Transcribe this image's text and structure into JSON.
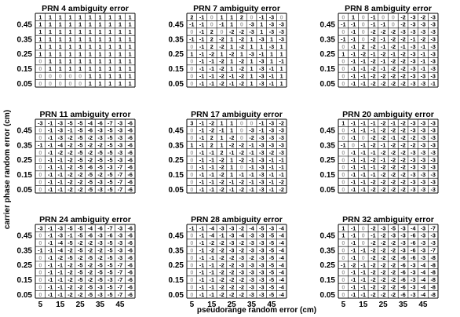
{
  "figure": {
    "ylabel": "carrier phase random error (cm)",
    "xlabel": "pseudorange random error (cm)",
    "y_ticks": [
      "0.45",
      "0.35",
      "0.25",
      "0.15",
      "0.05"
    ],
    "x_ticks": [
      "5",
      "15",
      "25",
      "35",
      "45"
    ],
    "zero_color": "#a0a0a0",
    "value_color": "#000000"
  },
  "chart_data": [
    {
      "type": "table",
      "title": "PRN 4 ambiguity error",
      "rows": [
        [
          1,
          1,
          1,
          1,
          1,
          1,
          1,
          1,
          1,
          1
        ],
        [
          1,
          1,
          1,
          1,
          1,
          1,
          1,
          1,
          1,
          1
        ],
        [
          1,
          1,
          1,
          1,
          1,
          1,
          1,
          1,
          1,
          1
        ],
        [
          1,
          1,
          1,
          1,
          1,
          1,
          1,
          1,
          1,
          1
        ],
        [
          1,
          1,
          1,
          1,
          1,
          1,
          1,
          1,
          1,
          1
        ],
        [
          1,
          1,
          1,
          1,
          1,
          1,
          1,
          1,
          1,
          1
        ],
        [
          0,
          1,
          1,
          1,
          1,
          1,
          1,
          1,
          1,
          1
        ],
        [
          0,
          1,
          1,
          1,
          1,
          1,
          1,
          1,
          1,
          1
        ],
        [
          0,
          0,
          0,
          0,
          0,
          1,
          1,
          1,
          1,
          1
        ],
        [
          0,
          0,
          0,
          0,
          0,
          1,
          1,
          1,
          1,
          1
        ]
      ]
    },
    {
      "type": "table",
      "title": "PRN 7 ambiguity error",
      "rows": [
        [
          2,
          -1,
          0,
          1,
          1,
          2,
          0,
          -1,
          -3,
          0
        ],
        [
          -1,
          -1,
          0,
          -1,
          1,
          0,
          -3,
          1,
          -3,
          -3
        ],
        [
          0,
          -1,
          2,
          0,
          -2,
          -2,
          -3,
          1,
          -3,
          -3
        ],
        [
          -1,
          -1,
          2,
          -2,
          1,
          -2,
          1,
          -3,
          1,
          -3
        ],
        [
          0,
          -1,
          2,
          -2,
          1,
          -2,
          1,
          1,
          -3,
          1
        ],
        [
          1,
          -1,
          -2,
          1,
          -2,
          1,
          -3,
          -1,
          1,
          1
        ],
        [
          0,
          -1,
          -1,
          -2,
          1,
          -2,
          1,
          -3,
          1,
          -1
        ],
        [
          0,
          -1,
          -1,
          -2,
          1,
          -2,
          1,
          -3,
          -1,
          1
        ],
        [
          0,
          -1,
          -1,
          -2,
          -1,
          -2,
          1,
          -3,
          -1,
          1
        ],
        [
          0,
          -1,
          -1,
          -2,
          -1,
          -2,
          1,
          -3,
          -1,
          1
        ]
      ]
    },
    {
      "type": "table",
      "title": "PRN 8 ambiguity error",
      "rows": [
        [
          0,
          1,
          0,
          -1,
          0,
          0,
          -2,
          -3,
          -2,
          -3
        ],
        [
          -1,
          -1,
          0,
          -1,
          -1,
          0,
          -2,
          -3,
          -3,
          -3
        ],
        [
          0,
          -1,
          0,
          -2,
          -2,
          -2,
          -3,
          -3,
          -3,
          -3
        ],
        [
          -1,
          -1,
          0,
          -2,
          -1,
          -2,
          -2,
          -1,
          -2,
          -3
        ],
        [
          0,
          -1,
          2,
          -2,
          -1,
          -2,
          -1,
          -3,
          -1,
          -3
        ],
        [
          1,
          -1,
          -2,
          -1,
          -2,
          -1,
          -2,
          -3,
          -1,
          -3
        ],
        [
          0,
          -1,
          -1,
          -2,
          -1,
          -2,
          -2,
          -3,
          -1,
          -3
        ],
        [
          0,
          -1,
          -1,
          -2,
          -1,
          -2,
          -2,
          -3,
          -1,
          -3
        ],
        [
          0,
          -1,
          -1,
          -2,
          -2,
          -2,
          -2,
          -3,
          -3,
          -3
        ],
        [
          0,
          -1,
          -1,
          -2,
          -2,
          -2,
          -2,
          -3,
          -3,
          -1
        ]
      ]
    },
    {
      "type": "table",
      "title": "PRN 11 ambiguity error",
      "rows": [
        [
          -3,
          -1,
          -3,
          -5,
          -5,
          -4,
          -6,
          -7,
          -3,
          -6
        ],
        [
          0,
          -1,
          -3,
          -1,
          -5,
          -6,
          -3,
          -5,
          -3,
          -6
        ],
        [
          0,
          -1,
          -3,
          -2,
          -5,
          -2,
          -3,
          -5,
          -3,
          -6
        ],
        [
          -1,
          -1,
          -4,
          -2,
          -5,
          -2,
          -2,
          -5,
          -3,
          -6
        ],
        [
          0,
          -1,
          -2,
          -2,
          -5,
          -2,
          -5,
          -5,
          -3,
          -6
        ],
        [
          0,
          -1,
          -1,
          -2,
          -5,
          -2,
          -5,
          -5,
          -3,
          -6
        ],
        [
          0,
          -1,
          -1,
          -2,
          -5,
          -6,
          -5,
          -3,
          -7,
          -6
        ],
        [
          0,
          -1,
          -1,
          -2,
          -2,
          -5,
          -2,
          -5,
          -7,
          -6
        ],
        [
          0,
          -1,
          -1,
          -2,
          -2,
          -5,
          -3,
          -5,
          -7,
          -6
        ],
        [
          0,
          -1,
          -1,
          -2,
          -2,
          -5,
          -3,
          -5,
          -7,
          -6
        ]
      ]
    },
    {
      "type": "table",
      "title": "PRN 17 ambiguity error",
      "rows": [
        [
          3,
          -1,
          -2,
          1,
          1,
          0,
          0,
          -1,
          -3,
          -2
        ],
        [
          0,
          -1,
          -2,
          -1,
          1,
          0,
          -3,
          -1,
          -3,
          -3
        ],
        [
          0,
          -1,
          2,
          1,
          -2,
          0,
          -2,
          -3,
          -3,
          -3
        ],
        [
          1,
          -1,
          2,
          1,
          -2,
          -2,
          -1,
          -3,
          -3,
          -3
        ],
        [
          0,
          -1,
          -1,
          2,
          -1,
          -2,
          -1,
          -3,
          -2,
          -3
        ],
        [
          0,
          -1,
          -1,
          -2,
          1,
          -2,
          -1,
          -3,
          -1,
          -1
        ],
        [
          0,
          -1,
          -1,
          -2,
          1,
          0,
          -1,
          -3,
          -1,
          -1
        ],
        [
          0,
          -1,
          -1,
          -2,
          1,
          -1,
          -1,
          -3,
          -1,
          -1
        ],
        [
          0,
          -1,
          -1,
          -2,
          -1,
          -2,
          -1,
          -3,
          -1,
          -2
        ],
        [
          0,
          -1,
          -1,
          -2,
          -1,
          -2,
          -1,
          -3,
          -1,
          -2
        ]
      ]
    },
    {
      "type": "table",
      "title": "PRN 20 ambiguity error",
      "rows": [
        [
          1,
          -1,
          -1,
          -1,
          -2,
          -1,
          -2,
          -3,
          -3,
          -3
        ],
        [
          0,
          -1,
          -1,
          -1,
          -2,
          -2,
          -2,
          -3,
          -3,
          -3
        ],
        [
          0,
          -1,
          0,
          -2,
          -2,
          -1,
          -2,
          -2,
          -3,
          -3
        ],
        [
          -1,
          0,
          -1,
          -2,
          -1,
          -2,
          -2,
          -2,
          -3,
          -3
        ],
        [
          0,
          -1,
          -1,
          -1,
          -2,
          -2,
          -2,
          -3,
          -3,
          -3
        ],
        [
          0,
          -1,
          -1,
          -2,
          -1,
          -2,
          -2,
          -3,
          -3,
          -3
        ],
        [
          0,
          -1,
          -1,
          -1,
          -2,
          -2,
          -2,
          -3,
          -3,
          -3
        ],
        [
          0,
          -1,
          -1,
          -1,
          -2,
          -2,
          -2,
          -3,
          -3,
          -3
        ],
        [
          0,
          -1,
          -1,
          -2,
          -2,
          -2,
          -2,
          -3,
          -3,
          -3
        ],
        [
          0,
          -1,
          -1,
          -2,
          -2,
          -2,
          -2,
          -3,
          -3,
          -3
        ]
      ]
    },
    {
      "type": "table",
      "title": "PRN 24 ambiguity error",
      "rows": [
        [
          -3,
          -1,
          -3,
          -5,
          -5,
          -4,
          -6,
          -7,
          -3,
          -6
        ],
        [
          0,
          -1,
          -3,
          -1,
          -5,
          -6,
          -3,
          -6,
          -3,
          -6
        ],
        [
          0,
          -1,
          -4,
          -5,
          -2,
          -2,
          -3,
          -5,
          -3,
          -6
        ],
        [
          -1,
          -1,
          -4,
          -2,
          -5,
          -2,
          -2,
          -5,
          -3,
          -6
        ],
        [
          0,
          -1,
          -2,
          -5,
          -2,
          -5,
          -2,
          -5,
          -3,
          -6
        ],
        [
          0,
          -1,
          -1,
          -2,
          -5,
          -2,
          -5,
          -5,
          -7,
          -6
        ],
        [
          0,
          -1,
          -1,
          -2,
          -5,
          -2,
          -5,
          -5,
          -7,
          -6
        ],
        [
          0,
          -1,
          -1,
          -2,
          -5,
          -2,
          -5,
          -3,
          -7,
          -6
        ],
        [
          0,
          -1,
          -1,
          -2,
          -2,
          -5,
          -3,
          -5,
          -7,
          -6
        ],
        [
          0,
          -1,
          -1,
          -2,
          -2,
          -5,
          -3,
          -5,
          -7,
          -6
        ]
      ]
    },
    {
      "type": "table",
      "title": "PRN 28 ambiguity error",
      "rows": [
        [
          -1,
          -1,
          -4,
          -3,
          -3,
          -2,
          -4,
          -5,
          -3,
          -4
        ],
        [
          0,
          -1,
          -4,
          -1,
          -3,
          -4,
          -3,
          -3,
          -5,
          -4
        ],
        [
          0,
          -1,
          -2,
          -2,
          -3,
          -2,
          -3,
          -3,
          -5,
          -4
        ],
        [
          0,
          -1,
          -2,
          -2,
          -3,
          -2,
          -3,
          -3,
          -5,
          -4
        ],
        [
          0,
          -1,
          -1,
          -2,
          -2,
          -3,
          -2,
          -3,
          -5,
          -4
        ],
        [
          0,
          -1,
          -1,
          -2,
          -2,
          -3,
          -3,
          -3,
          -5,
          -4
        ],
        [
          0,
          -1,
          -1,
          -2,
          -2,
          -3,
          -3,
          -3,
          -5,
          -4
        ],
        [
          0,
          -1,
          -1,
          -2,
          -2,
          -2,
          -3,
          -3,
          -5,
          -4
        ],
        [
          0,
          -1,
          -1,
          -2,
          -2,
          -2,
          -3,
          -3,
          -5,
          -4
        ],
        [
          0,
          -1,
          -1,
          -2,
          -2,
          -2,
          -3,
          -3,
          -5,
          -4
        ]
      ]
    },
    {
      "type": "table",
      "title": "PRN 32 ambiguity error",
      "rows": [
        [
          1,
          -1,
          0,
          -2,
          -3,
          -5,
          -3,
          -4,
          -3,
          -7
        ],
        [
          1,
          -1,
          0,
          -1,
          -2,
          -3,
          -3,
          -6,
          -3,
          -3
        ],
        [
          0,
          -1,
          0,
          -2,
          -2,
          -2,
          -3,
          -6,
          -3,
          -3
        ],
        [
          0,
          -1,
          -1,
          -2,
          -2,
          -2,
          -3,
          -6,
          -3,
          -7
        ],
        [
          0,
          -1,
          0,
          -2,
          -2,
          -2,
          -6,
          -6,
          -3,
          -8
        ],
        [
          -1,
          -2,
          -1,
          -2,
          -2,
          -2,
          -6,
          -3,
          -4,
          -8
        ],
        [
          0,
          -1,
          -1,
          -2,
          -2,
          -2,
          -6,
          -3,
          -4,
          -8
        ],
        [
          0,
          -1,
          -1,
          -2,
          -2,
          -2,
          -6,
          -3,
          -4,
          -8
        ],
        [
          0,
          -1,
          -1,
          -2,
          -2,
          -2,
          -6,
          -3,
          -4,
          -8
        ],
        [
          0,
          -1,
          -1,
          -2,
          -2,
          -2,
          -6,
          -3,
          -4,
          -8
        ]
      ]
    }
  ]
}
